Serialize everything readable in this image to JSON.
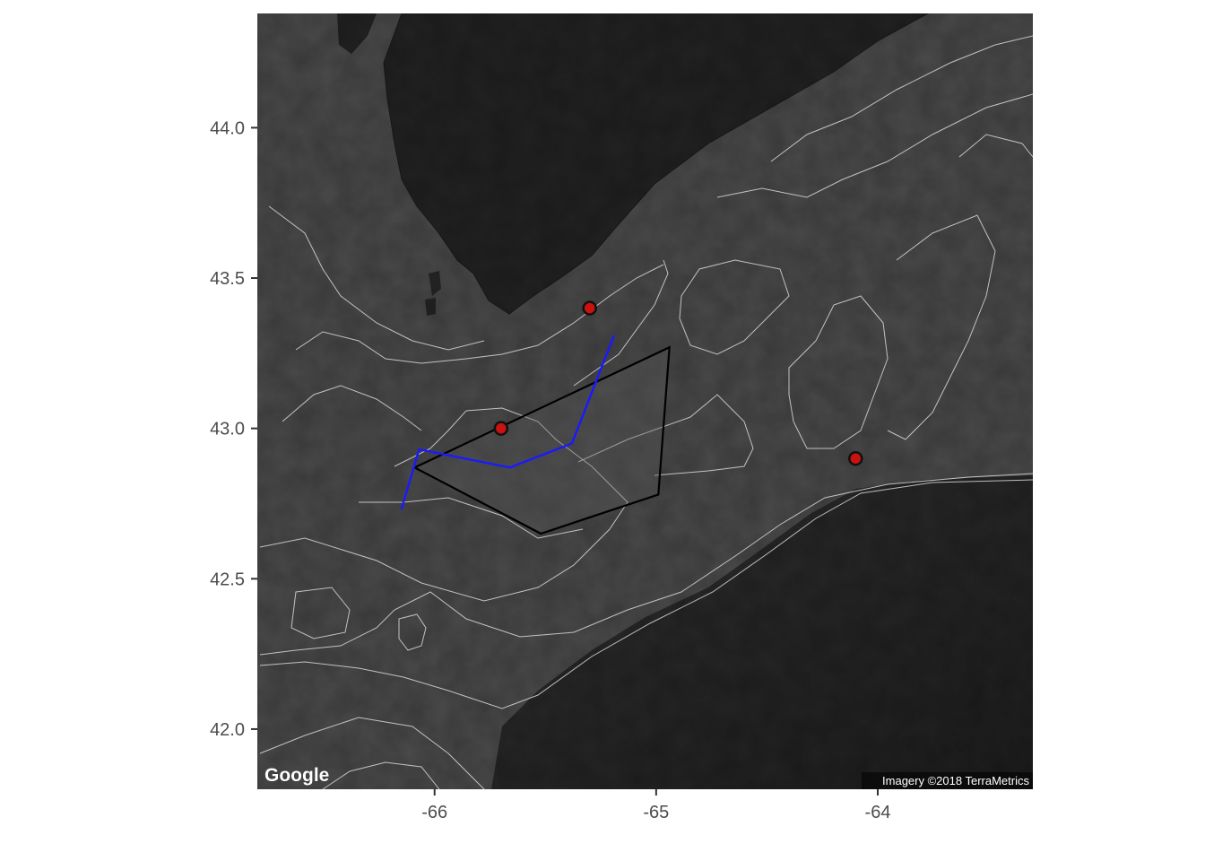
{
  "map": {
    "basemap": "satellite-grayscale",
    "x_range": [
      -66.8,
      -63.3
    ],
    "y_range": [
      41.8,
      44.38
    ],
    "x_ticks": [
      -66,
      -65,
      -64
    ],
    "y_ticks": [
      42.0,
      42.5,
      43.0,
      43.5,
      44.0
    ],
    "x_tick_labels": [
      "-66",
      "-65",
      "-64"
    ],
    "y_tick_labels": [
      "42.0",
      "42.5",
      "43.0",
      "43.5",
      "44.0"
    ],
    "logo_text": "Google",
    "attribution": "Imagery ©2018 TerraMetrics",
    "colors": {
      "point_fill": "#cc1111",
      "point_stroke": "#111111",
      "polygon_stroke": "#000000",
      "line_stroke": "#1a1aff",
      "contour": "#d9d9d9"
    }
  },
  "chart_data": {
    "type": "map",
    "points": [
      {
        "lon": -65.3,
        "lat": 43.4
      },
      {
        "lon": -65.7,
        "lat": 43.0
      },
      {
        "lon": -64.1,
        "lat": 42.9
      }
    ],
    "polygon": [
      {
        "lon": -66.09,
        "lat": 42.87
      },
      {
        "lon": -64.94,
        "lat": 43.27
      },
      {
        "lon": -64.99,
        "lat": 42.78
      },
      {
        "lon": -65.52,
        "lat": 42.65
      }
    ],
    "track": [
      {
        "lon": -66.15,
        "lat": 42.73
      },
      {
        "lon": -66.07,
        "lat": 42.93
      },
      {
        "lon": -65.66,
        "lat": 42.87
      },
      {
        "lon": -65.38,
        "lat": 42.95
      },
      {
        "lon": -65.19,
        "lat": 43.31
      }
    ]
  }
}
